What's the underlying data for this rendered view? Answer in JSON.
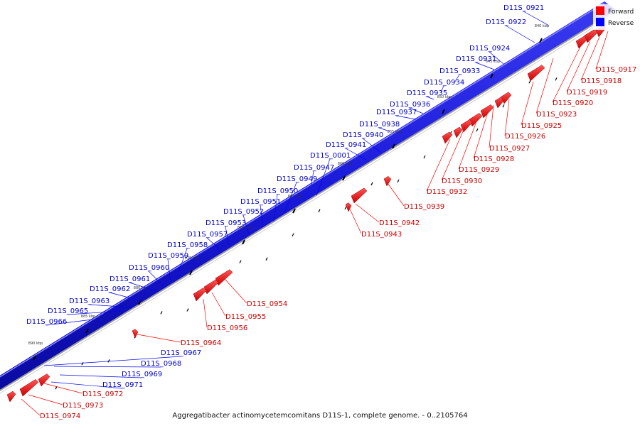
{
  "caption": "Aggregatibacter actinomycetemcomitans D11S-1, complete genome. - 0..2105764",
  "legend": [
    {
      "label": "Forward",
      "color": "#ff0000"
    },
    {
      "label": "Reverse",
      "color": "#0000ff"
    }
  ],
  "colors": {
    "forward": "#ff0000",
    "reverse": "#0000ff",
    "track": "#1a1adb"
  },
  "ticks": [
    "840 kbp",
    "845 kbp",
    "850 kbp",
    "855 kbp",
    "860 kbp",
    "865 kbp",
    "870 kbp",
    "875 kbp",
    "880 kbp",
    "885 kbp",
    "890 kbp"
  ],
  "reverse_genes": [
    "D11S_0921",
    "D11S_0922",
    "D11S_0924",
    "D11S_0931",
    "D11S_0933",
    "D11S_0934",
    "D11S_0935",
    "D11S_0936",
    "D11S_0937",
    "D11S_0938",
    "D11S_0940",
    "D11S_0941",
    "D11S_0001",
    "D11S_0947",
    "D11S_0949",
    "D11S_0950",
    "D11S_0951",
    "D11S_0952",
    "D11S_0953",
    "D11S_0957",
    "D11S_0958",
    "D11S_0959",
    "D11S_0960",
    "D11S_0961",
    "D11S_0962",
    "D11S_0963",
    "D11S_0965",
    "D11S_0966",
    "D11S_0967",
    "D11S_0968",
    "D11S_0969",
    "D11S_0971"
  ],
  "forward_genes": [
    "D11S_0917",
    "D11S_0918",
    "D11S_0919",
    "D11S_0920",
    "D11S_0923",
    "D11S_0925",
    "D11S_0926",
    "D11S_0927",
    "D11S_0928",
    "D11S_0929",
    "D11S_0930",
    "D11S_0932",
    "D11S_0939",
    "D11S_0942",
    "D11S_0943",
    "D11S_0954",
    "D11S_0955",
    "D11S_0956",
    "D11S_0964",
    "D11S_0972",
    "D11S_0973",
    "D11S_0974"
  ]
}
